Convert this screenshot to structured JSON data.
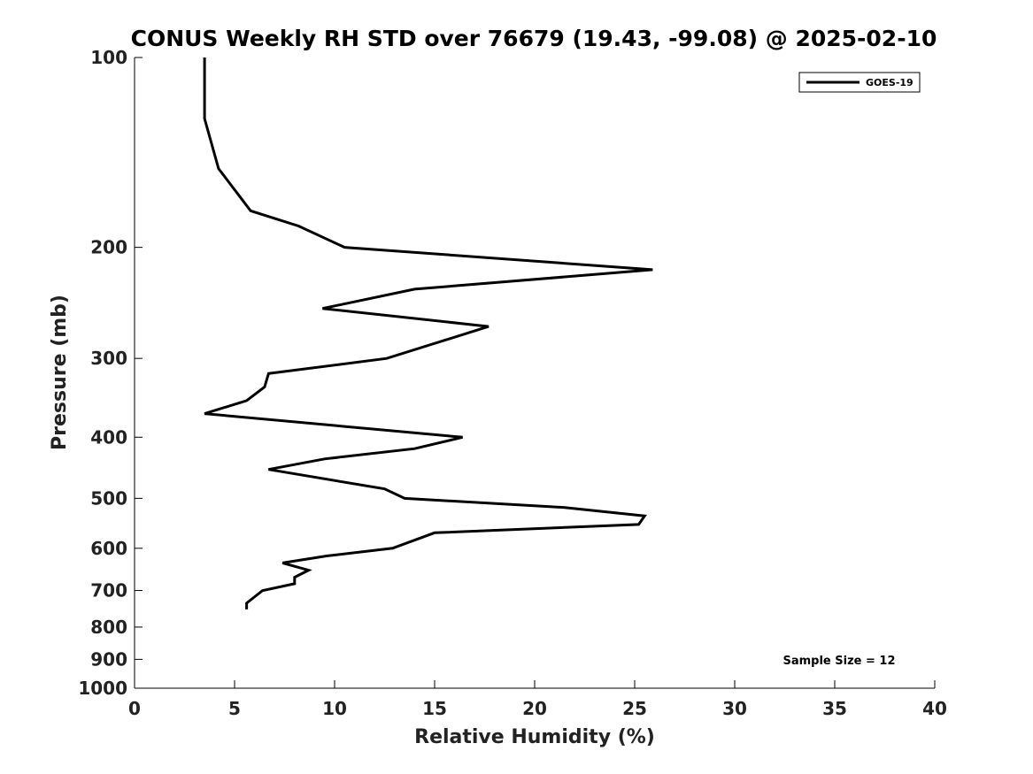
{
  "chart_data": {
    "type": "line",
    "title": "CONUS Weekly RH STD over 76679 (19.43, -99.08) @ 2025-02-10",
    "xlabel": "Relative Humidity (%)",
    "ylabel": "Pressure (mb)",
    "xlim": [
      0,
      40
    ],
    "ylim": [
      100,
      1000
    ],
    "yscale": "log",
    "yreversed": true,
    "xticks": [
      0,
      5,
      10,
      15,
      20,
      25,
      30,
      35,
      40
    ],
    "yticks": [
      100,
      200,
      300,
      400,
      500,
      600,
      700,
      800,
      900,
      1000
    ],
    "legend_position": "top-right",
    "series": [
      {
        "name": "GOES-19",
        "color": "#000000",
        "points": [
          {
            "x": 3.5,
            "p": 100
          },
          {
            "x": 3.5,
            "p": 125
          },
          {
            "x": 4.2,
            "p": 150
          },
          {
            "x": 5.8,
            "p": 175
          },
          {
            "x": 8.2,
            "p": 185
          },
          {
            "x": 10.5,
            "p": 200
          },
          {
            "x": 25.9,
            "p": 217
          },
          {
            "x": 14.0,
            "p": 233
          },
          {
            "x": 9.4,
            "p": 250
          },
          {
            "x": 17.7,
            "p": 267
          },
          {
            "x": 12.6,
            "p": 300
          },
          {
            "x": 6.7,
            "p": 317
          },
          {
            "x": 6.5,
            "p": 333
          },
          {
            "x": 5.6,
            "p": 350
          },
          {
            "x": 3.5,
            "p": 367
          },
          {
            "x": 16.4,
            "p": 400
          },
          {
            "x": 14.0,
            "p": 417
          },
          {
            "x": 9.5,
            "p": 433
          },
          {
            "x": 6.7,
            "p": 450
          },
          {
            "x": 12.5,
            "p": 483
          },
          {
            "x": 13.5,
            "p": 500
          },
          {
            "x": 21.5,
            "p": 517
          },
          {
            "x": 25.5,
            "p": 533
          },
          {
            "x": 25.2,
            "p": 550
          },
          {
            "x": 15.0,
            "p": 567
          },
          {
            "x": 12.9,
            "p": 600
          },
          {
            "x": 9.6,
            "p": 617
          },
          {
            "x": 7.4,
            "p": 633
          },
          {
            "x": 8.7,
            "p": 650
          },
          {
            "x": 8.0,
            "p": 667
          },
          {
            "x": 8.0,
            "p": 683
          },
          {
            "x": 6.4,
            "p": 700
          },
          {
            "x": 5.6,
            "p": 733
          },
          {
            "x": 5.6,
            "p": 750
          }
        ]
      }
    ],
    "annotations": [
      "Sample Size = 12"
    ]
  }
}
